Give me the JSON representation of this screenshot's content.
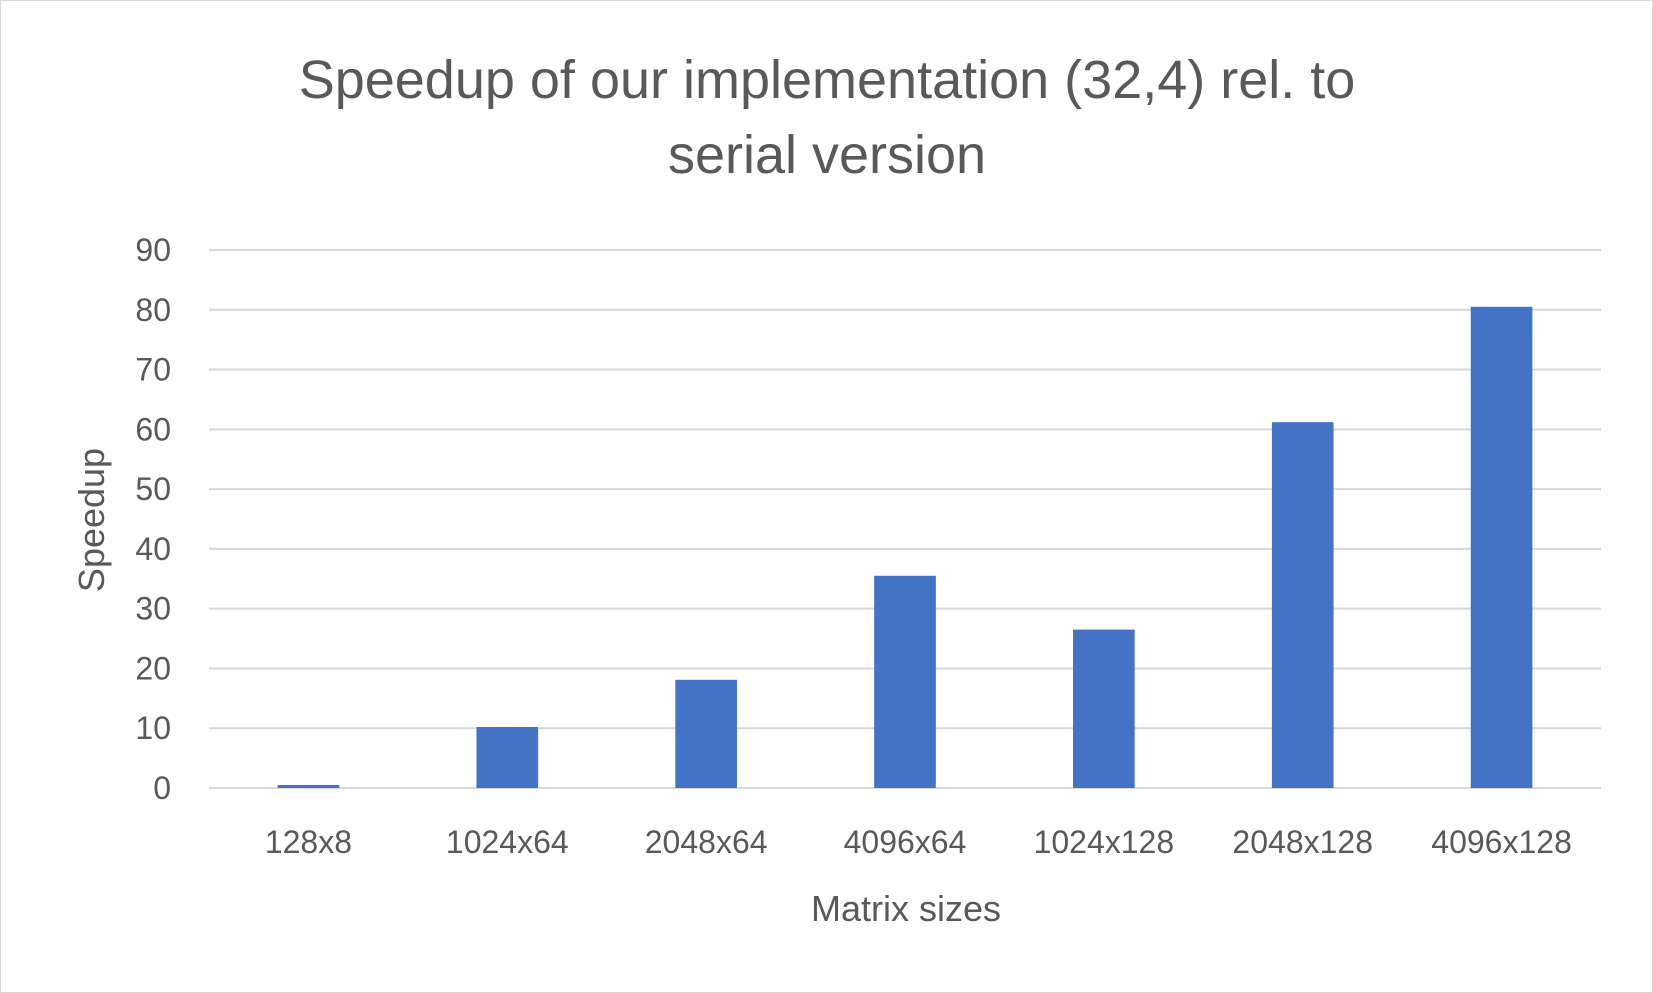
{
  "chart_data": {
    "type": "bar",
    "title_lines": [
      "Speedup of our implementation (32,4) rel. to",
      "serial version"
    ],
    "xlabel": "Matrix sizes",
    "ylabel": "Speedup",
    "categories": [
      "128x8",
      "1024x64",
      "2048x64",
      "4096x64",
      "1024x128",
      "2048x128",
      "4096x128"
    ],
    "values": [
      0.5,
      10.2,
      18.1,
      35.5,
      26.5,
      61.2,
      80.5
    ],
    "ylim": [
      0,
      90
    ],
    "yticks": [
      "0",
      "10",
      "20",
      "30",
      "40",
      "50",
      "60",
      "70",
      "80",
      "90"
    ],
    "grid": true,
    "legend": "none",
    "bar_color": "#4472c4"
  }
}
